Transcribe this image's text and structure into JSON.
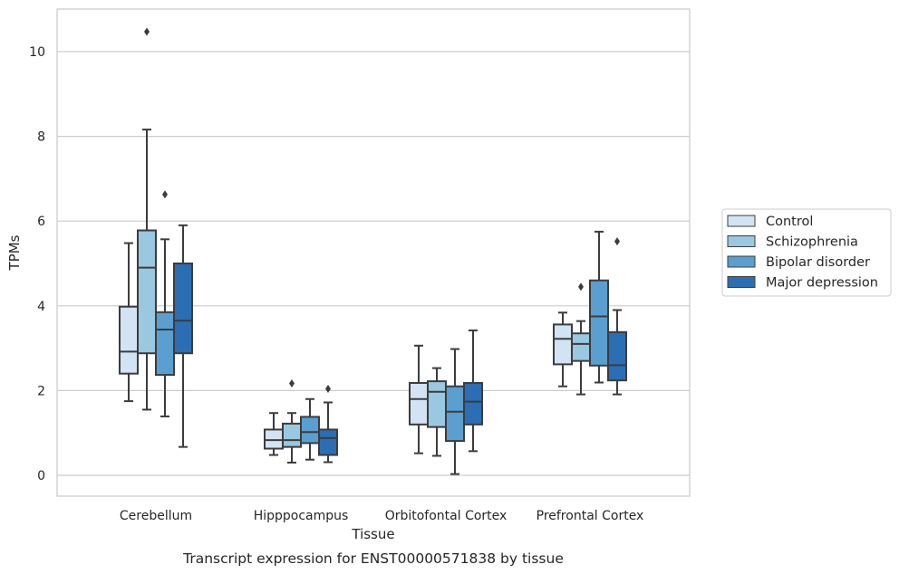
{
  "chart_data": {
    "type": "box",
    "title": "Transcript expression for ENST00000571838 by tissue",
    "xlabel": "Tissue",
    "ylabel": "TPMs",
    "ylim": [
      -0.5,
      11
    ],
    "yticks": [
      0,
      2,
      4,
      6,
      8,
      10
    ],
    "grid": true,
    "legend_position": "right",
    "categories": [
      "Cerebellum",
      "Hipppocampus",
      "Orbitofontal Cortex",
      "Prefrontal Cortex"
    ],
    "series": [
      {
        "name": "Control",
        "color": "#d2e3f3",
        "boxes": [
          {
            "whislo": 1.75,
            "q1": 2.4,
            "med": 2.92,
            "q3": 3.98,
            "whishi": 5.48,
            "fliers": []
          },
          {
            "whislo": 0.48,
            "q1": 0.63,
            "med": 0.83,
            "q3": 1.08,
            "whishi": 1.47,
            "fliers": []
          },
          {
            "whislo": 0.52,
            "q1": 1.2,
            "med": 1.8,
            "q3": 2.18,
            "whishi": 3.06,
            "fliers": []
          },
          {
            "whislo": 2.1,
            "q1": 2.62,
            "med": 3.22,
            "q3": 3.56,
            "whishi": 3.84,
            "fliers": []
          }
        ]
      },
      {
        "name": "Schizophrenia",
        "color": "#9ac8e0",
        "boxes": [
          {
            "whislo": 1.55,
            "q1": 2.88,
            "med": 4.9,
            "q3": 5.78,
            "whishi": 8.16,
            "fliers": [
              10.47
            ]
          },
          {
            "whislo": 0.3,
            "q1": 0.67,
            "med": 0.83,
            "q3": 1.22,
            "whishi": 1.47,
            "fliers": [
              2.17
            ]
          },
          {
            "whislo": 0.46,
            "q1": 1.14,
            "med": 1.97,
            "q3": 2.22,
            "whishi": 2.53,
            "fliers": []
          },
          {
            "whislo": 1.91,
            "q1": 2.7,
            "med": 3.1,
            "q3": 3.35,
            "whishi": 3.64,
            "fliers": [
              4.45
            ]
          }
        ]
      },
      {
        "name": "Bipolar disorder",
        "color": "#5a9fcf",
        "boxes": [
          {
            "whislo": 1.39,
            "q1": 2.37,
            "med": 3.44,
            "q3": 3.85,
            "whishi": 5.57,
            "fliers": [
              6.63
            ]
          },
          {
            "whislo": 0.37,
            "q1": 0.76,
            "med": 1.02,
            "q3": 1.38,
            "whishi": 1.8,
            "fliers": []
          },
          {
            "whislo": 0.03,
            "q1": 0.81,
            "med": 1.5,
            "q3": 2.1,
            "whishi": 2.98,
            "fliers": []
          },
          {
            "whislo": 2.19,
            "q1": 2.59,
            "med": 3.75,
            "q3": 4.6,
            "whishi": 5.75,
            "fliers": []
          }
        ]
      },
      {
        "name": "Major depression",
        "color": "#2b6eb3",
        "boxes": [
          {
            "whislo": 0.67,
            "q1": 2.88,
            "med": 3.65,
            "q3": 5.0,
            "whishi": 5.9,
            "fliers": []
          },
          {
            "whislo": 0.31,
            "q1": 0.48,
            "med": 0.88,
            "q3": 1.08,
            "whishi": 1.72,
            "fliers": [
              2.04
            ]
          },
          {
            "whislo": 0.57,
            "q1": 1.2,
            "med": 1.74,
            "q3": 2.18,
            "whishi": 3.42,
            "fliers": []
          },
          {
            "whislo": 1.91,
            "q1": 2.24,
            "med": 2.6,
            "q3": 3.38,
            "whishi": 3.9,
            "fliers": [
              5.52
            ]
          }
        ]
      }
    ]
  }
}
